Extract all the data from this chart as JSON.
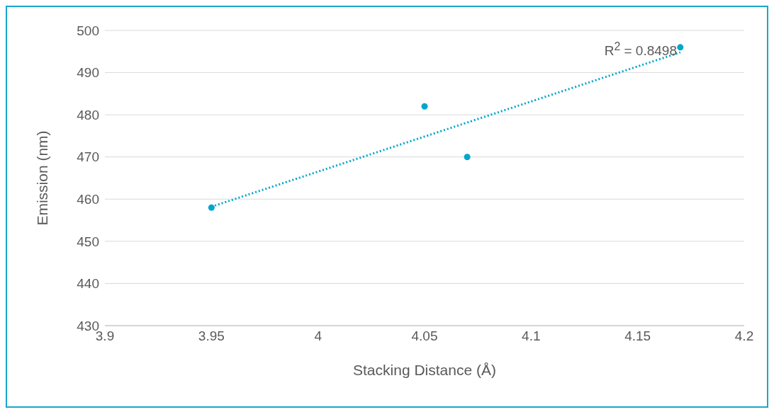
{
  "chart_data": {
    "type": "scatter",
    "xlabel": "Stacking Distance (Å)",
    "ylabel": "Emission (nm)",
    "xlim": [
      3.9,
      4.2
    ],
    "xticks": [
      3.9,
      3.95,
      4,
      4.05,
      4.1,
      4.15,
      4.2
    ],
    "ylim": [
      430,
      500
    ],
    "yticks": [
      430,
      440,
      450,
      460,
      470,
      480,
      490,
      500
    ],
    "grid": "y",
    "marker": "circle",
    "series": [
      {
        "color": "#00a6cc",
        "x": [
          3.95,
          4.05,
          4.07,
          4.17
        ],
        "values": [
          458,
          482,
          470,
          496
        ]
      },
      {
        "type": "line",
        "color": "#00a6cc",
        "line_style": "dotted",
        "marker": "none",
        "x": [
          3.95,
          4.17
        ],
        "values": [
          458.2,
          494.8
        ]
      }
    ],
    "annotations": [
      "R$^{2}$ = 0.8498"
    ]
  }
}
